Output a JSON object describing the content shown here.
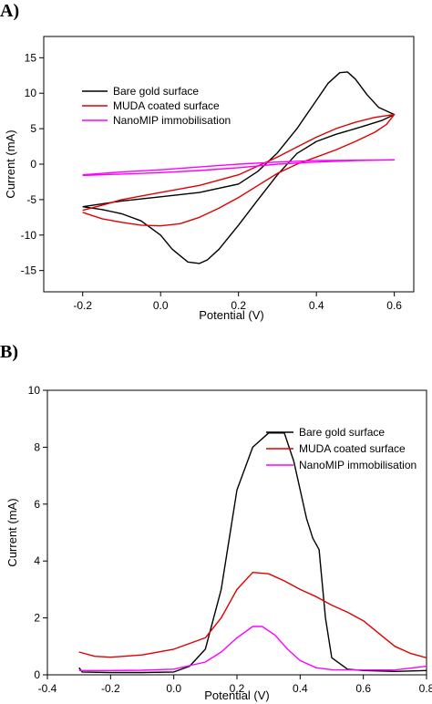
{
  "chart_data": [
    {
      "panel_label": "A)",
      "type": "line",
      "xlabel": "Potential (V)",
      "ylabel": "Current (mA)",
      "xlim": [
        -0.3,
        0.65
      ],
      "ylim": [
        -18,
        18
      ],
      "xticks": [
        -0.2,
        0.0,
        0.2,
        0.4,
        0.6
      ],
      "xtick_labels": [
        "-0.2",
        "0.0",
        "0.2",
        "0.4",
        "0.6"
      ],
      "yticks": [
        -15,
        -10,
        -5,
        0,
        5,
        10,
        15
      ],
      "ytick_labels": [
        "-15",
        "-10",
        "-5",
        "0",
        "5",
        "10",
        "15"
      ],
      "grid": false,
      "legend_position": "top-left",
      "series": [
        {
          "name": "Bare gold surface",
          "color": "#000000",
          "points": [
            [
              -0.2,
              -6.0
            ],
            [
              -0.15,
              -5.6
            ],
            [
              -0.1,
              -5.2
            ],
            [
              0.0,
              -4.6
            ],
            [
              0.1,
              -4.0
            ],
            [
              0.2,
              -2.8
            ],
            [
              0.25,
              -1.0
            ],
            [
              0.3,
              1.6
            ],
            [
              0.35,
              5.0
            ],
            [
              0.4,
              9.0
            ],
            [
              0.43,
              11.4
            ],
            [
              0.46,
              12.9
            ],
            [
              0.48,
              13.0
            ],
            [
              0.5,
              12.0
            ],
            [
              0.53,
              9.8
            ],
            [
              0.56,
              8.0
            ],
            [
              0.6,
              7.0
            ],
            [
              0.57,
              6.2
            ],
            [
              0.53,
              5.5
            ],
            [
              0.5,
              5.0
            ],
            [
              0.45,
              4.2
            ],
            [
              0.4,
              3.2
            ],
            [
              0.35,
              1.5
            ],
            [
              0.3,
              -1.5
            ],
            [
              0.25,
              -5.0
            ],
            [
              0.2,
              -8.6
            ],
            [
              0.15,
              -12.0
            ],
            [
              0.12,
              -13.5
            ],
            [
              0.1,
              -14.0
            ],
            [
              0.07,
              -13.8
            ],
            [
              0.03,
              -12.0
            ],
            [
              0.0,
              -10.0
            ],
            [
              -0.05,
              -8.0
            ],
            [
              -0.1,
              -7.0
            ],
            [
              -0.15,
              -6.4
            ],
            [
              -0.2,
              -6.0
            ]
          ]
        },
        {
          "name": "MUDA coated surface",
          "color": "#e00000",
          "points": [
            [
              -0.2,
              -6.5
            ],
            [
              -0.15,
              -5.8
            ],
            [
              -0.1,
              -5.0
            ],
            [
              0.0,
              -4.0
            ],
            [
              0.1,
              -3.0
            ],
            [
              0.2,
              -1.5
            ],
            [
              0.3,
              1.0
            ],
            [
              0.35,
              2.4
            ],
            [
              0.4,
              3.8
            ],
            [
              0.45,
              5.0
            ],
            [
              0.5,
              5.9
            ],
            [
              0.55,
              6.6
            ],
            [
              0.6,
              7.0
            ],
            [
              0.58,
              5.6
            ],
            [
              0.55,
              4.5
            ],
            [
              0.5,
              3.2
            ],
            [
              0.45,
              2.0
            ],
            [
              0.4,
              1.0
            ],
            [
              0.35,
              0.0
            ],
            [
              0.3,
              -1.3
            ],
            [
              0.25,
              -3.0
            ],
            [
              0.2,
              -4.7
            ],
            [
              0.15,
              -6.2
            ],
            [
              0.1,
              -7.5
            ],
            [
              0.05,
              -8.4
            ],
            [
              0.0,
              -8.7
            ],
            [
              -0.05,
              -8.6
            ],
            [
              -0.1,
              -8.2
            ],
            [
              -0.15,
              -7.7
            ],
            [
              -0.2,
              -6.8
            ]
          ]
        },
        {
          "name": "NanoMIP immobilisation",
          "color": "#ff00ff",
          "points": [
            [
              -0.2,
              -1.6
            ],
            [
              -0.1,
              -1.4
            ],
            [
              0.0,
              -1.2
            ],
            [
              0.1,
              -0.9
            ],
            [
              0.2,
              -0.5
            ],
            [
              0.3,
              0.0
            ],
            [
              0.4,
              0.3
            ],
            [
              0.5,
              0.5
            ],
            [
              0.6,
              0.6
            ],
            [
              0.5,
              0.55
            ],
            [
              0.4,
              0.5
            ],
            [
              0.3,
              0.3
            ],
            [
              0.2,
              0.0
            ],
            [
              0.1,
              -0.4
            ],
            [
              0.0,
              -0.8
            ],
            [
              -0.1,
              -1.1
            ],
            [
              -0.2,
              -1.5
            ]
          ]
        }
      ]
    },
    {
      "panel_label": "B)",
      "type": "line",
      "xlabel": "Potential (V)",
      "ylabel": "Current (mA)",
      "xlim": [
        -0.4,
        0.8
      ],
      "ylim": [
        0,
        10
      ],
      "xticks": [
        -0.4,
        -0.2,
        0.0,
        0.2,
        0.4,
        0.6,
        0.8
      ],
      "xtick_labels": [
        "-0.4",
        "-0.2",
        "0.0",
        "0.2",
        "0.4",
        "0.6",
        "0.8"
      ],
      "yticks": [
        0,
        2,
        4,
        6,
        8,
        10
      ],
      "ytick_labels": [
        "0",
        "2",
        "4",
        "6",
        "8",
        "10"
      ],
      "grid": false,
      "legend_position": "top-right",
      "series": [
        {
          "name": "Bare gold surface",
          "color": "#000000",
          "points": [
            [
              -0.3,
              0.25
            ],
            [
              -0.29,
              0.1
            ],
            [
              -0.2,
              0.08
            ],
            [
              -0.1,
              0.08
            ],
            [
              0.0,
              0.1
            ],
            [
              0.05,
              0.3
            ],
            [
              0.1,
              0.9
            ],
            [
              0.15,
              3.0
            ],
            [
              0.2,
              6.5
            ],
            [
              0.25,
              8.0
            ],
            [
              0.3,
              8.5
            ],
            [
              0.35,
              8.5
            ],
            [
              0.38,
              7.5
            ],
            [
              0.42,
              5.5
            ],
            [
              0.44,
              4.8
            ],
            [
              0.46,
              4.4
            ],
            [
              0.48,
              2.0
            ],
            [
              0.5,
              0.6
            ],
            [
              0.55,
              0.2
            ],
            [
              0.6,
              0.15
            ],
            [
              0.7,
              0.12
            ],
            [
              0.8,
              0.15
            ]
          ]
        },
        {
          "name": "MUDA coated surface",
          "color": "#e00000",
          "points": [
            [
              -0.3,
              0.8
            ],
            [
              -0.25,
              0.65
            ],
            [
              -0.2,
              0.62
            ],
            [
              -0.1,
              0.7
            ],
            [
              0.0,
              0.9
            ],
            [
              0.1,
              1.3
            ],
            [
              0.15,
              2.0
            ],
            [
              0.2,
              3.0
            ],
            [
              0.25,
              3.6
            ],
            [
              0.3,
              3.55
            ],
            [
              0.35,
              3.3
            ],
            [
              0.4,
              3.0
            ],
            [
              0.45,
              2.75
            ],
            [
              0.5,
              2.45
            ],
            [
              0.55,
              2.2
            ],
            [
              0.6,
              1.9
            ],
            [
              0.65,
              1.45
            ],
            [
              0.7,
              1.0
            ],
            [
              0.75,
              0.75
            ],
            [
              0.8,
              0.6
            ]
          ]
        },
        {
          "name": "NanoMIP immobilisation",
          "color": "#ff00ff",
          "points": [
            [
              -0.3,
              0.15
            ],
            [
              -0.2,
              0.15
            ],
            [
              -0.1,
              0.16
            ],
            [
              0.0,
              0.2
            ],
            [
              0.1,
              0.45
            ],
            [
              0.15,
              0.8
            ],
            [
              0.2,
              1.3
            ],
            [
              0.25,
              1.7
            ],
            [
              0.28,
              1.7
            ],
            [
              0.32,
              1.4
            ],
            [
              0.36,
              0.9
            ],
            [
              0.4,
              0.5
            ],
            [
              0.45,
              0.25
            ],
            [
              0.5,
              0.18
            ],
            [
              0.6,
              0.17
            ],
            [
              0.7,
              0.17
            ],
            [
              0.8,
              0.3
            ]
          ]
        }
      ]
    }
  ]
}
